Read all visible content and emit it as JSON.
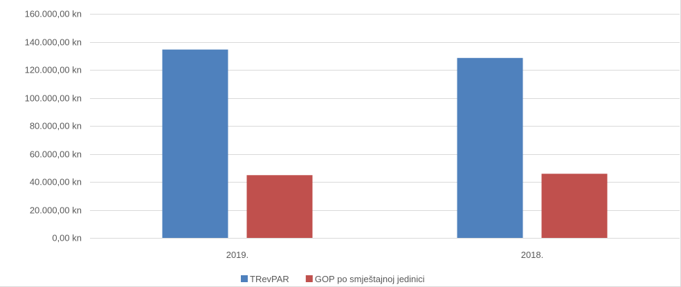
{
  "chart_data": {
    "type": "bar",
    "title": "",
    "xlabel": "",
    "ylabel": "",
    "categories": [
      "2019.",
      "2018."
    ],
    "series": [
      {
        "name": "TRevPAR",
        "values": [
          134500,
          128500
        ],
        "color": "#4f81bd"
      },
      {
        "name": "GOP po smještajnoj jedinici",
        "values": [
          44800,
          45800
        ],
        "color": "#c0504d"
      }
    ],
    "ylim": [
      0,
      160000
    ],
    "y_ticks": [
      {
        "value": 0,
        "label": "0,00 kn"
      },
      {
        "value": 20000,
        "label": "20.000,00 kn"
      },
      {
        "value": 40000,
        "label": "40.000,00 kn"
      },
      {
        "value": 60000,
        "label": "60.000,00 kn"
      },
      {
        "value": 80000,
        "label": "80.000,00 kn"
      },
      {
        "value": 100000,
        "label": "100.000,00 kn"
      },
      {
        "value": 120000,
        "label": "120.000,00 kn"
      },
      {
        "value": 140000,
        "label": "140.000,00 kn"
      },
      {
        "value": 160000,
        "label": "160.000,00 kn"
      }
    ],
    "grid": true,
    "legend_position": "bottom"
  }
}
